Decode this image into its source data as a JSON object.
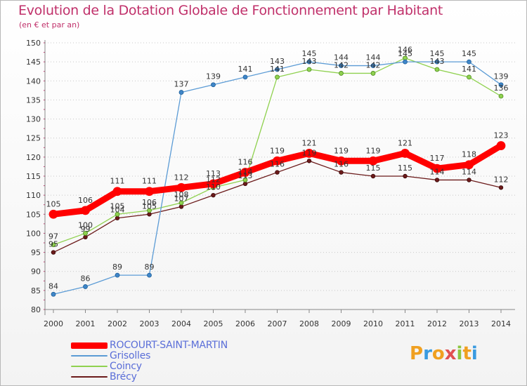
{
  "title": "Evolution de la Dotation Globale de Fonctionnement par Habitant",
  "subtitle": "(en € et par an)",
  "logo_text": "Proxiti",
  "chart_data": {
    "type": "line",
    "title": "Evolution de la Dotation Globale de Fonctionnement par Habitant",
    "subtitle": "(en € et par an)",
    "x": [
      "2000",
      "2001",
      "2002",
      "2003",
      "2004",
      "2005",
      "2006",
      "2007",
      "2008",
      "2009",
      "2010",
      "2011",
      "2012",
      "2013",
      "2014"
    ],
    "ylim": [
      80,
      150
    ],
    "yticks": [
      80,
      85,
      90,
      95,
      100,
      105,
      110,
      115,
      120,
      125,
      130,
      135,
      140,
      145,
      150
    ],
    "grid": "horizontal, dotted",
    "legend_position": "bottom-left",
    "series": [
      {
        "name": "ROCOURT-SAINT-MARTIN",
        "color": "#ff0000",
        "values": [
          105,
          106,
          111,
          111,
          112,
          113,
          116,
          119,
          121,
          119,
          119,
          121,
          117,
          118,
          123
        ]
      },
      {
        "name": "Grisolles",
        "color": "#5b9bd5",
        "values": [
          84,
          86,
          89,
          89,
          137,
          139,
          141,
          143,
          145,
          144,
          144,
          145,
          145,
          145,
          139
        ]
      },
      {
        "name": "Coincy",
        "color": "#8fd14f",
        "values": [
          97,
          100,
          105,
          106,
          108,
          112,
          114,
          141,
          143,
          142,
          142,
          146,
          143,
          141,
          136
        ]
      },
      {
        "name": "Brécy",
        "color": "#6b1a1a",
        "values": [
          95,
          99,
          104,
          105,
          107,
          110,
          113,
          116,
          119,
          116,
          115,
          115,
          114,
          114,
          112
        ]
      }
    ]
  }
}
